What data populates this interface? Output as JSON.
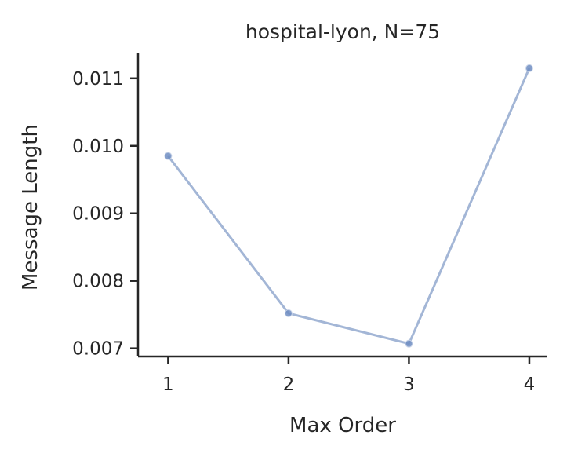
{
  "chart_data": {
    "type": "line",
    "title": "hospital-lyon, N=75",
    "xlabel": "Max Order",
    "ylabel": "Message Length",
    "x": [
      1,
      2,
      3,
      4
    ],
    "series": [
      {
        "values": [
          0.00985,
          0.00752,
          0.00707,
          0.01115
        ]
      }
    ],
    "x_ticks": [
      "1",
      "2",
      "3",
      "4"
    ],
    "y_ticks": [
      "0.007",
      "0.008",
      "0.009",
      "0.010",
      "0.011"
    ],
    "xlim": [
      0.75,
      4.15
    ],
    "ylim": [
      0.00688,
      0.01137
    ],
    "grid": false,
    "line_color": "#a3b6d6",
    "marker_color": "#6f8dc2"
  }
}
